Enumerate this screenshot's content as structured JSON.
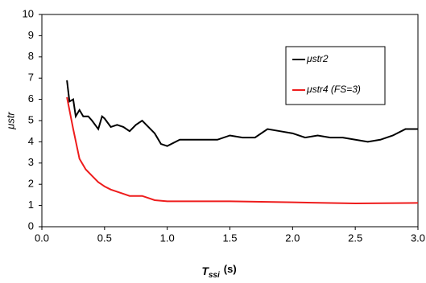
{
  "chart_data": {
    "type": "line",
    "y_label": "μstr",
    "x_label_symbol": "T",
    "x_label_subscript": "ssi",
    "x_label_unit": "(s)",
    "xlim": [
      0,
      3
    ],
    "ylim": [
      0,
      10
    ],
    "xticks": [
      {
        "value": 0,
        "label": "0.0"
      },
      0.5,
      {
        "value": 1,
        "label": "1.0"
      },
      1.5,
      {
        "value": 2,
        "label": "2.0"
      },
      2.5,
      {
        "value": 3,
        "label": "3.0"
      }
    ],
    "yticks": [
      0,
      1,
      2,
      3,
      4,
      5,
      6,
      7,
      8,
      9,
      10
    ],
    "grid": false,
    "legend": "upper right",
    "series": [
      {
        "name": "μstr2",
        "color": "#000000",
        "x": [
          0.2,
          0.22,
          0.25,
          0.27,
          0.3,
          0.33,
          0.37,
          0.4,
          0.45,
          0.48,
          0.5,
          0.55,
          0.6,
          0.65,
          0.7,
          0.75,
          0.8,
          0.85,
          0.9,
          0.95,
          1.0,
          1.1,
          1.2,
          1.3,
          1.4,
          1.5,
          1.6,
          1.7,
          1.8,
          1.9,
          2.0,
          2.1,
          2.2,
          2.3,
          2.4,
          2.5,
          2.6,
          2.7,
          2.8,
          2.9,
          3.0
        ],
        "values": [
          6.9,
          5.9,
          6.0,
          5.2,
          5.5,
          5.2,
          5.2,
          5.0,
          4.6,
          5.2,
          5.1,
          4.7,
          4.8,
          4.7,
          4.5,
          4.8,
          5.0,
          4.7,
          4.4,
          3.9,
          3.8,
          4.1,
          4.1,
          4.1,
          4.1,
          4.3,
          4.2,
          4.2,
          4.6,
          4.5,
          4.4,
          4.2,
          4.3,
          4.2,
          4.2,
          4.1,
          4.0,
          4.1,
          4.3,
          4.6,
          4.6
        ]
      },
      {
        "name": "μstr4 (FS=3)",
        "color": "#ee1c1c",
        "x": [
          0.2,
          0.25,
          0.3,
          0.35,
          0.4,
          0.45,
          0.5,
          0.55,
          0.6,
          0.65,
          0.7,
          0.75,
          0.8,
          0.85,
          0.9,
          1.0,
          1.5,
          2.0,
          2.5,
          3.0
        ],
        "values": [
          6.1,
          4.6,
          3.2,
          2.7,
          2.4,
          2.1,
          1.9,
          1.75,
          1.65,
          1.55,
          1.45,
          1.45,
          1.45,
          1.35,
          1.25,
          1.2,
          1.2,
          1.15,
          1.1,
          1.12
        ]
      }
    ]
  }
}
